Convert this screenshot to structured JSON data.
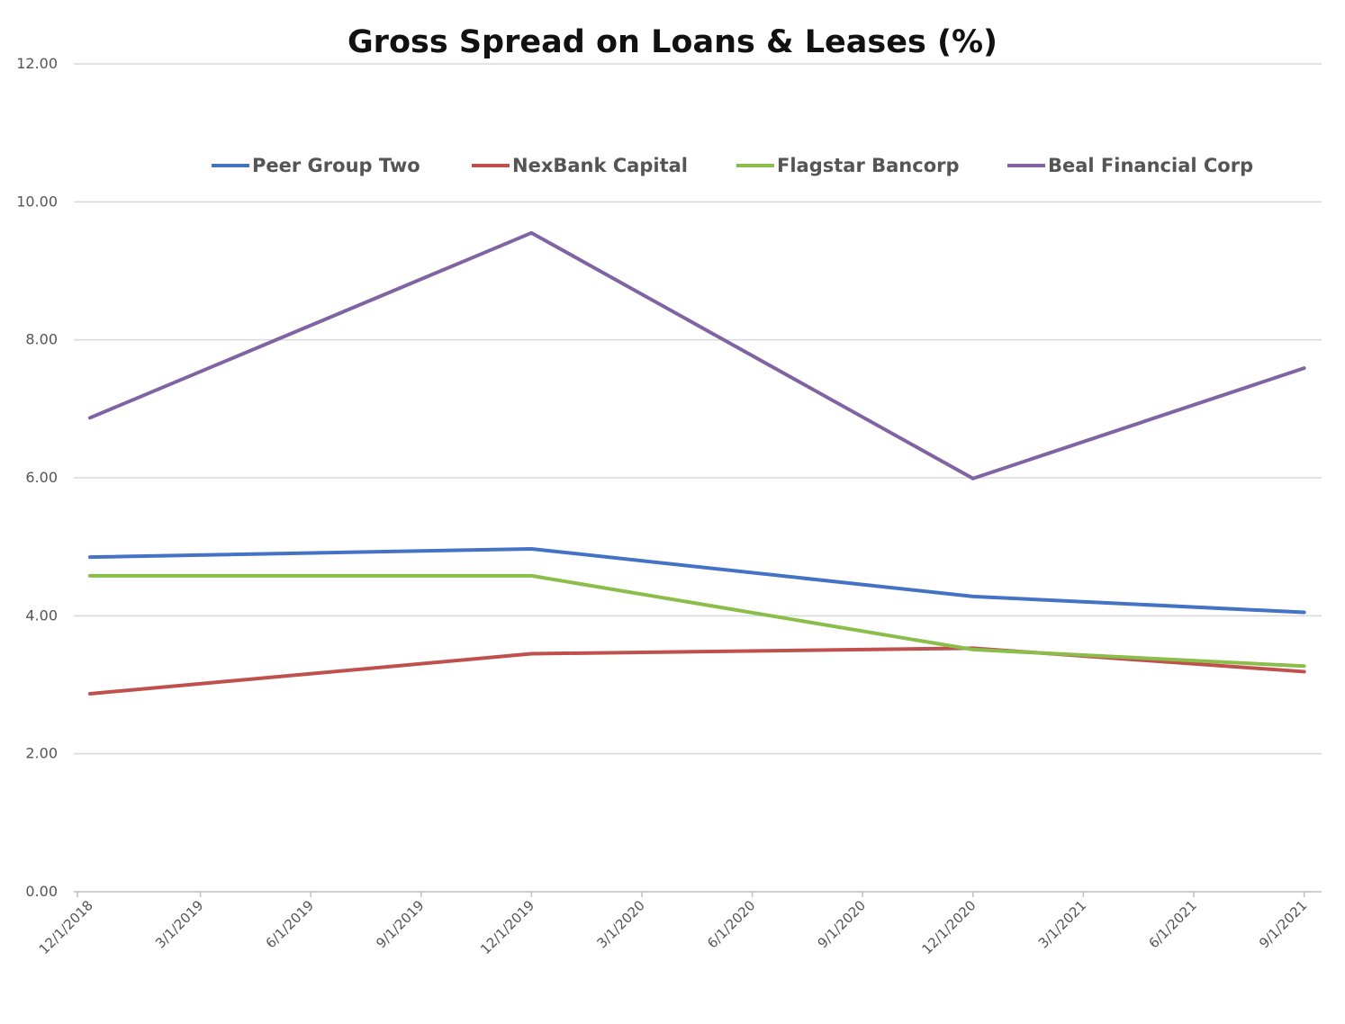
{
  "chart_data": {
    "type": "line",
    "title": "Gross Spread on Loans & Leases (%)",
    "xlabel": "",
    "ylabel": "",
    "ylim": [
      0,
      12
    ],
    "yticks": [
      "0.00",
      "2.00",
      "4.00",
      "6.00",
      "8.00",
      "10.00",
      "12.00"
    ],
    "categories": [
      "12/1/2018",
      "3/1/2019",
      "6/1/2019",
      "9/1/2019",
      "12/1/2019",
      "3/1/2020",
      "6/1/2020",
      "9/1/2020",
      "12/1/2020",
      "3/1/2021",
      "6/1/2021",
      "9/1/2021"
    ],
    "grid": "horizontal",
    "legend_position": "top",
    "series": [
      {
        "name": "Peer Group Two",
        "color": "#4472c4",
        "points": [
          {
            "x": "12/1/2018",
            "y": 4.85
          },
          {
            "x": "12/1/2019",
            "y": 4.97
          },
          {
            "x": "12/1/2020",
            "y": 4.28
          },
          {
            "x": "9/1/2021",
            "y": 4.05
          }
        ]
      },
      {
        "name": "NexBank Capital",
        "color": "#c0504d",
        "points": [
          {
            "x": "12/1/2018",
            "y": 2.87
          },
          {
            "x": "12/1/2019",
            "y": 3.45
          },
          {
            "x": "12/1/2020",
            "y": 3.53
          },
          {
            "x": "9/1/2021",
            "y": 3.19
          }
        ]
      },
      {
        "name": "Flagstar Bancorp",
        "color": "#8bbd4a",
        "points": [
          {
            "x": "12/1/2018",
            "y": 4.58
          },
          {
            "x": "12/1/2019",
            "y": 4.58
          },
          {
            "x": "12/1/2020",
            "y": 3.51
          },
          {
            "x": "9/1/2021",
            "y": 3.27
          }
        ]
      },
      {
        "name": "Beal Financial Corp",
        "color": "#8064a2",
        "points": [
          {
            "x": "12/1/2018",
            "y": 6.87
          },
          {
            "x": "12/1/2019",
            "y": 9.55
          },
          {
            "x": "12/1/2020",
            "y": 5.99
          },
          {
            "x": "9/1/2021",
            "y": 7.59
          }
        ]
      }
    ]
  }
}
